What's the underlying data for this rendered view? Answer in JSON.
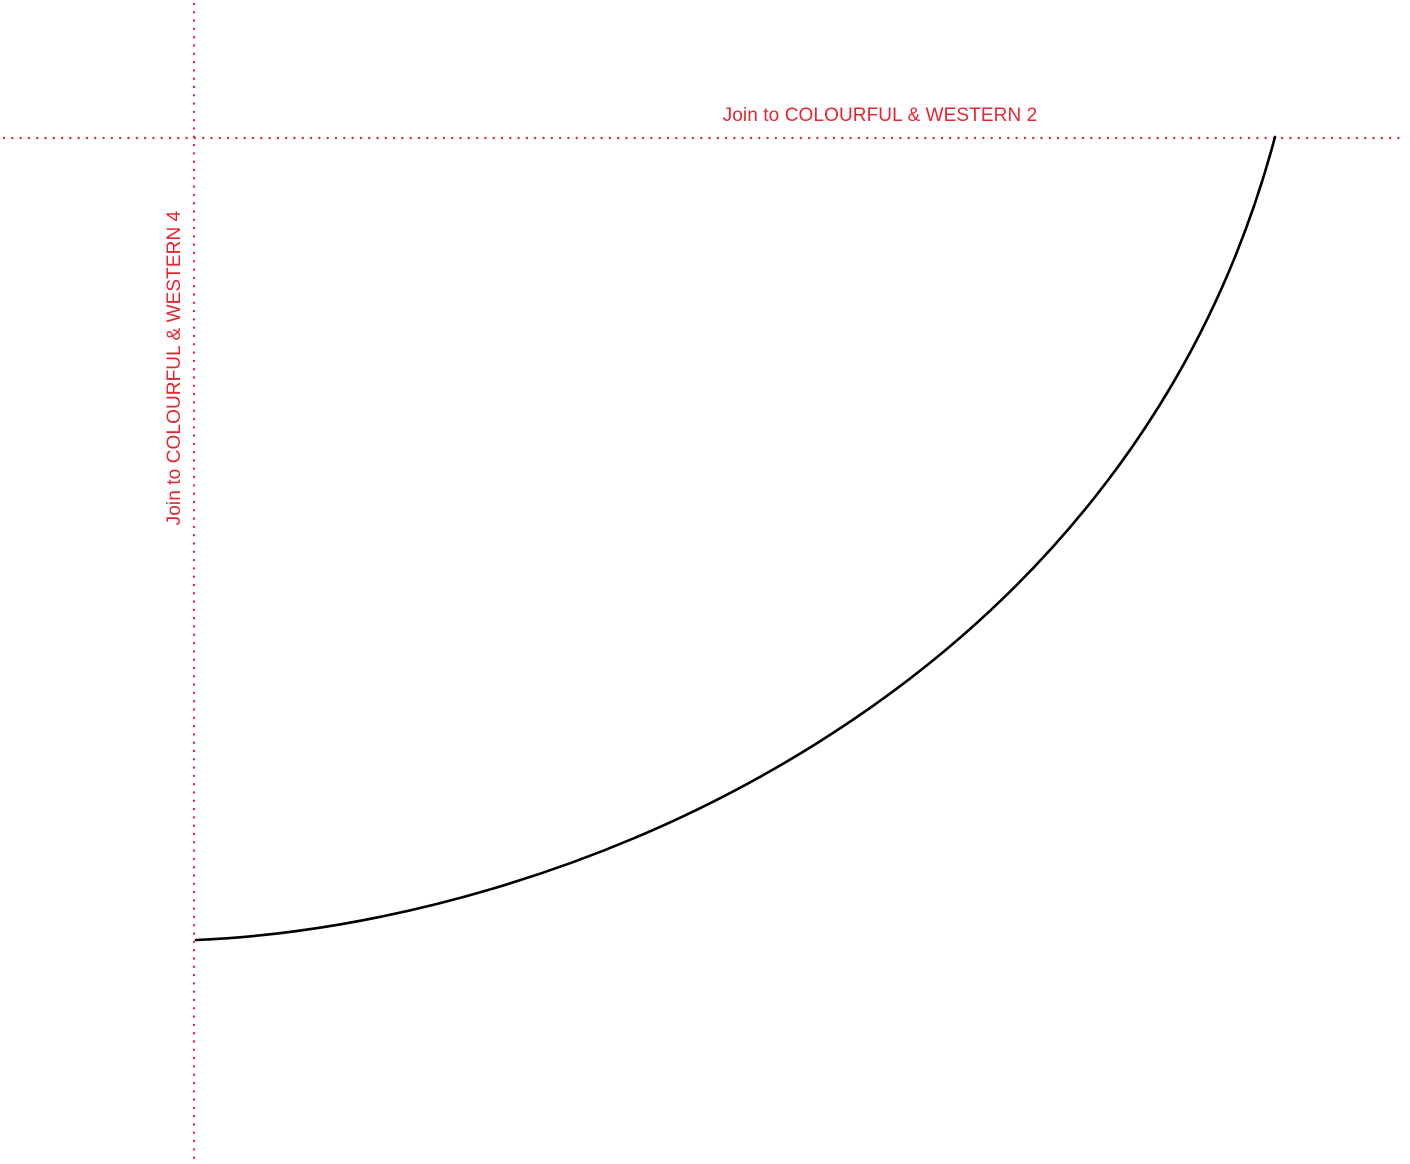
{
  "labels": {
    "top_join": "Join to COLOURFUL & WESTERN 2",
    "side_join": "Join to COLOURFUL & WESTERN 4"
  },
  "colors": {
    "guide": "#e52630",
    "cut_line": "#000000",
    "background": "#ffffff"
  }
}
